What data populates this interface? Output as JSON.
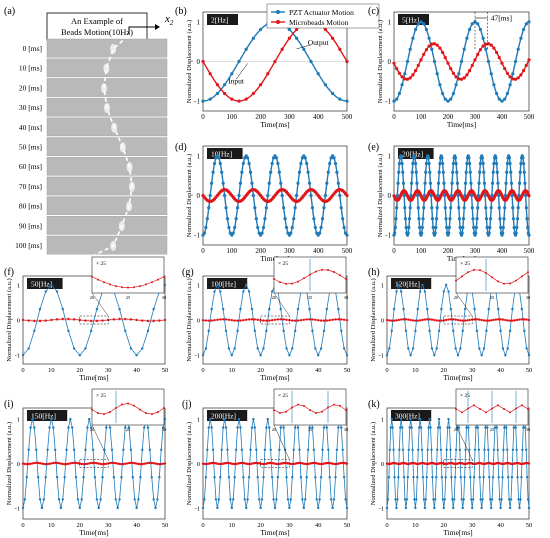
{
  "colors": {
    "actuator": "#1f7ab8",
    "beads": "#e0161b",
    "tag_bg": "#1a1a1a",
    "tag_fg": "#ffffff",
    "beads_strip": "#b9b9b9"
  },
  "panel_a": {
    "letter": "(a)",
    "title_line1": "An Example of",
    "title_line2": "Beads Motion(10Hz)",
    "axis_label": "x",
    "axis_sub": "2",
    "rows": [
      "0 [ms]",
      "10 [ms]",
      "20 [ms]",
      "30 [ms]",
      "40 [ms]",
      "50 [ms]",
      "60 [ms]",
      "70 [ms]",
      "80 [ms]",
      "90 [ms]",
      "100 [ms]"
    ]
  },
  "chart_data": [
    {
      "type": "line",
      "letter": "(b)",
      "tag": "2[Hz]",
      "freq_hz": 2,
      "actuator_amplitude": 1.0,
      "beads_amplitude": 1.0,
      "beads_lag_ms": 125,
      "xlim": [
        0,
        500
      ],
      "ylim": [
        -1.25,
        1.25
      ],
      "xticks": [
        "0",
        "100",
        "200",
        "300",
        "400",
        "500"
      ],
      "yticks": [
        "1",
        "0",
        "-1"
      ],
      "xlabel": "Time[ms]",
      "ylabel": "Normalized Displacement (a.u.)",
      "legend": [
        "PZT Actuator Motion",
        "Microbeads Motion"
      ],
      "annotations": [
        "Input",
        "Output"
      ]
    },
    {
      "type": "line",
      "letter": "(c)",
      "tag": "5[Hz]",
      "freq_hz": 5,
      "actuator_amplitude": 1.0,
      "beads_amplitude": 0.45,
      "beads_lag_ms": 47,
      "xlim": [
        0,
        500
      ],
      "ylim": [
        -1.25,
        1.25
      ],
      "xticks": [
        "0",
        "100",
        "200",
        "300",
        "400",
        "500"
      ],
      "yticks": [
        "1",
        "0",
        "-1"
      ],
      "xlabel": "Time[ms]",
      "ylabel": "Normalized Displacement (a.u.)",
      "annotations": [
        "47[ms]"
      ]
    },
    {
      "type": "line",
      "letter": "(d)",
      "tag": "10[Hz]",
      "freq_hz": 10,
      "actuator_amplitude": 1.0,
      "beads_amplitude": 0.15,
      "beads_lag_ms": 25,
      "xlim": [
        0,
        500
      ],
      "ylim": [
        -1.25,
        1.25
      ],
      "xticks": [
        "0",
        "100",
        "200",
        "300",
        "400",
        "500"
      ],
      "yticks": [
        "1",
        "0",
        "-1"
      ],
      "xlabel": "Time[ms]",
      "ylabel": "Normalized Displacement (a.u.)"
    },
    {
      "type": "line",
      "letter": "(e)",
      "tag": "20[Hz]",
      "freq_hz": 20,
      "actuator_amplitude": 1.0,
      "beads_amplitude": 0.12,
      "beads_lag_ms": 12,
      "xlim": [
        0,
        500
      ],
      "ylim": [
        -1.25,
        1.25
      ],
      "xticks": [
        "0",
        "100",
        "200",
        "300",
        "400",
        "500"
      ],
      "yticks": [
        "1",
        "0",
        "-1"
      ],
      "xlabel": "Time[ms]",
      "ylabel": "Normalized Displacement (a.u.)"
    },
    {
      "type": "line",
      "letter": "(f)",
      "tag": "50[Hz]",
      "freq_hz": 50,
      "actuator_amplitude": 1.0,
      "beads_amplitude": 0.03,
      "beads_lag_ms": 5,
      "xlim": [
        0,
        50
      ],
      "ylim": [
        -1.25,
        1.25
      ],
      "xticks": [
        "0",
        "10",
        "20",
        "30",
        "40",
        "50"
      ],
      "yticks": [
        "1",
        "0",
        "-1"
      ],
      "xlabel": "Time[ms]",
      "ylabel": "Normalized Displacement (a.u.)",
      "inset": {
        "label": "× 25",
        "xticks": [
          "20",
          "25",
          "30"
        ]
      }
    },
    {
      "type": "line",
      "letter": "(g)",
      "tag": "100[Hz]",
      "freq_hz": 100,
      "actuator_amplitude": 1.0,
      "beads_amplitude": 0.02,
      "beads_lag_ms": 2,
      "xlim": [
        0,
        50
      ],
      "ylim": [
        -1.25,
        1.25
      ],
      "xticks": [
        "0",
        "10",
        "20",
        "30",
        "40",
        "50"
      ],
      "yticks": [
        "1",
        "0",
        "-1"
      ],
      "xlabel": "Time[ms]",
      "ylabel": "Normalized Displacement (a.u.)",
      "inset": {
        "label": "× 25",
        "xticks": [
          "20",
          "25",
          "30"
        ]
      }
    },
    {
      "type": "line",
      "letter": "(h)",
      "tag": "120[Hz]",
      "freq_hz": 120,
      "actuator_amplitude": 1.0,
      "beads_amplitude": 0.02,
      "beads_lag_ms": 2,
      "xlim": [
        0,
        50
      ],
      "ylim": [
        -1.25,
        1.25
      ],
      "xticks": [
        "0",
        "10",
        "20",
        "30",
        "40",
        "50"
      ],
      "yticks": [
        "1",
        "0",
        "-1"
      ],
      "xlabel": "Time[ms]",
      "ylabel": "Normalized Displacement (a.u.)",
      "inset": {
        "label": "× 25",
        "xticks": [
          "20",
          "25",
          "30"
        ]
      }
    },
    {
      "type": "line",
      "letter": "(i)",
      "tag": "150[Hz]",
      "freq_hz": 150,
      "actuator_amplitude": 1.0,
      "beads_amplitude": 0.015,
      "beads_lag_ms": 1.5,
      "xlim": [
        0,
        50
      ],
      "ylim": [
        -1.25,
        1.25
      ],
      "xticks": [
        "0",
        "10",
        "20",
        "30",
        "40",
        "50"
      ],
      "yticks": [
        "1",
        "0",
        "-1"
      ],
      "xlabel": "Time[ms]",
      "ylabel": "Normalized Displacement (a.u.)",
      "inset": {
        "label": "× 25",
        "xticks": [
          "20",
          "25",
          "30"
        ]
      }
    },
    {
      "type": "line",
      "letter": "(j)",
      "tag": "200[Hz]",
      "freq_hz": 200,
      "actuator_amplitude": 1.0,
      "beads_amplitude": 0.012,
      "beads_lag_ms": 1,
      "xlim": [
        0,
        50
      ],
      "ylim": [
        -1.25,
        1.25
      ],
      "xticks": [
        "0",
        "10",
        "20",
        "30",
        "40",
        "50"
      ],
      "yticks": [
        "1",
        "0",
        "-1"
      ],
      "xlabel": "Time[ms]",
      "ylabel": "Normalized Displacement (a.u.)",
      "inset": {
        "label": "× 25",
        "xticks": [
          "20",
          "25",
          "30"
        ]
      }
    },
    {
      "type": "line",
      "letter": "(k)",
      "tag": "300[Hz]",
      "freq_hz": 300,
      "actuator_amplitude": 1.0,
      "beads_amplitude": 0.01,
      "beads_lag_ms": 0.8,
      "xlim": [
        0,
        50
      ],
      "ylim": [
        -1.25,
        1.25
      ],
      "xticks": [
        "0",
        "10",
        "20",
        "30",
        "40",
        "50"
      ],
      "yticks": [
        "1",
        "0",
        "-1"
      ],
      "xlabel": "Time[ms]",
      "ylabel": "Normalized Displacement (a.u.)",
      "inset": {
        "label": "× 25",
        "xticks": [
          "20",
          "25",
          "30"
        ]
      }
    }
  ]
}
